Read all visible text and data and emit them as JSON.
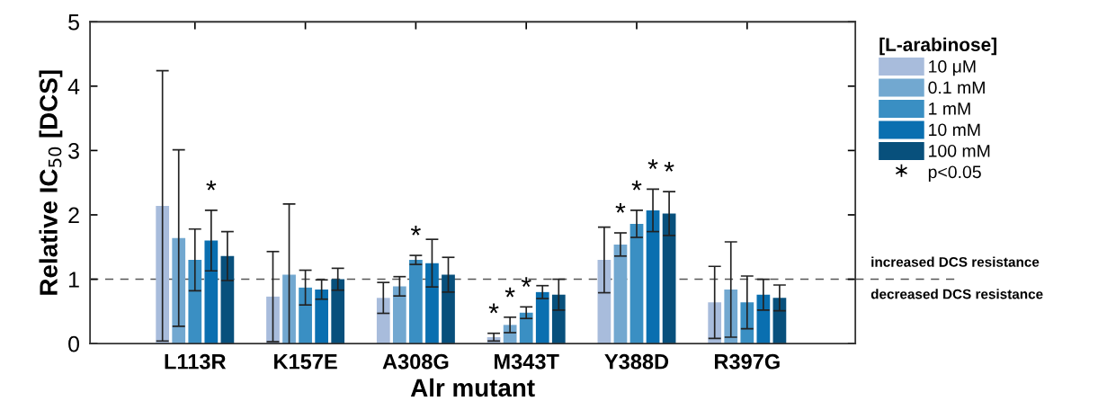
{
  "chart_data": {
    "type": "bar",
    "xlabel": "Alr mutant",
    "ylabel": "Relative IC$_{50}$ [DCS]",
    "legend_title": "[L-arabinose]",
    "categories": [
      "L113R",
      "K157E",
      "A308G",
      "M343T",
      "Y388D",
      "R397G"
    ],
    "series": [
      {
        "name": "10 μM",
        "color": "#a8bcdc",
        "values": [
          2.14,
          0.73,
          0.71,
          0.1,
          1.3,
          0.64
        ],
        "errors": [
          2.1,
          0.7,
          0.24,
          0.06,
          0.51,
          0.56
        ],
        "value_labels": [
          null,
          null,
          null,
          "*",
          null,
          null
        ]
      },
      {
        "name": "0.1 mM",
        "color": "#72a8d0",
        "values": [
          1.64,
          1.07,
          0.89,
          0.29,
          1.54,
          0.84
        ],
        "errors": [
          1.37,
          1.1,
          0.15,
          0.12,
          0.18,
          0.74
        ],
        "value_labels": [
          null,
          null,
          null,
          "*",
          "*",
          null
        ]
      },
      {
        "name": "1 mM",
        "color": "#3a8fc3",
        "values": [
          1.3,
          0.87,
          1.3,
          0.48,
          1.86,
          0.64
        ],
        "errors": [
          0.48,
          0.27,
          0.07,
          0.09,
          0.21,
          0.41
        ],
        "value_labels": [
          null,
          null,
          "*",
          "*",
          "*",
          null
        ]
      },
      {
        "name": "10 mM",
        "color": "#0a6fb0",
        "values": [
          1.6,
          0.84,
          1.25,
          0.8,
          2.07,
          0.76
        ],
        "errors": [
          0.47,
          0.15,
          0.37,
          0.1,
          0.33,
          0.24
        ],
        "value_labels": [
          "*",
          null,
          null,
          null,
          "*",
          null
        ]
      },
      {
        "name": "100 mM",
        "color": "#08507c",
        "values": [
          1.36,
          1.0,
          1.07,
          0.76,
          2.02,
          0.71
        ],
        "errors": [
          0.38,
          0.17,
          0.27,
          0.24,
          0.34,
          0.2
        ],
        "value_labels": [
          null,
          null,
          null,
          null,
          "*",
          null
        ]
      }
    ],
    "ylim": [
      0,
      5
    ],
    "yticks": [
      0,
      1,
      2,
      3,
      4,
      5
    ],
    "grid": false,
    "legend": "right",
    "ref_lines": [
      {
        "axis": "y",
        "value": 1,
        "label": "increased DCS resistance",
        "color": "#555555",
        "line_style": "dashed"
      }
    ],
    "annotations": [
      "p<0.05",
      "decreased DCS resistance"
    ]
  }
}
